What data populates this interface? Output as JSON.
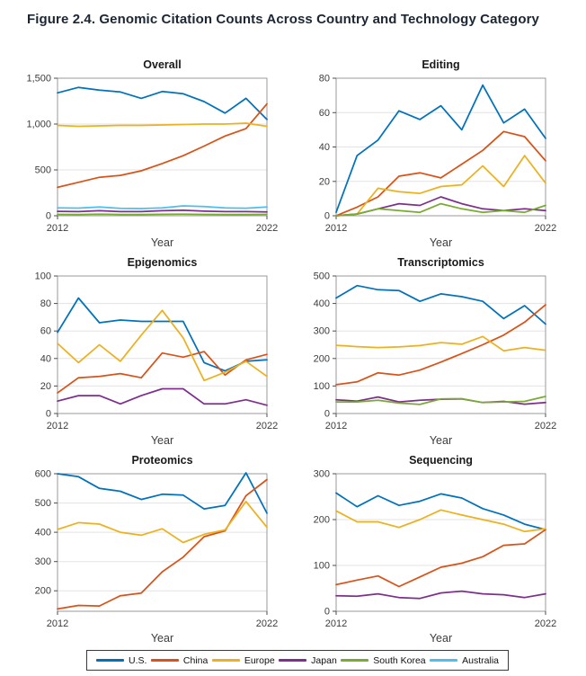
{
  "figure": {
    "title": "Figure 2.4. Genomic Citation Counts Across Country and Technology Category"
  },
  "legend": {
    "items": [
      {
        "label": "U.S.",
        "color": "#0072BD"
      },
      {
        "label": "China",
        "color": "#D95319"
      },
      {
        "label": "Europe",
        "color": "#EDB120"
      },
      {
        "label": "Japan",
        "color": "#7E2F8E"
      },
      {
        "label": "South Korea",
        "color": "#77AC30"
      },
      {
        "label": "Australia",
        "color": "#4DBEEE"
      }
    ]
  },
  "chart_data": [
    {
      "type": "line",
      "title": "Overall",
      "xlabel": "Year",
      "x": [
        2012,
        2013,
        2014,
        2015,
        2016,
        2017,
        2018,
        2019,
        2020,
        2021,
        2022
      ],
      "xticks": [
        "2012",
        "2022"
      ],
      "ylim": [
        0,
        1500
      ],
      "yticks": [
        0,
        500,
        1000,
        1500
      ],
      "ytick_labels": [
        "0",
        "500",
        "1,000",
        "1,500"
      ],
      "grid": true,
      "series": [
        {
          "name": "U.S.",
          "values": [
            1340,
            1400,
            1370,
            1350,
            1280,
            1355,
            1330,
            1245,
            1120,
            1280,
            1050
          ]
        },
        {
          "name": "China",
          "values": [
            310,
            365,
            420,
            440,
            490,
            570,
            655,
            760,
            870,
            950,
            1220
          ]
        },
        {
          "name": "Europe",
          "values": [
            985,
            975,
            980,
            985,
            985,
            990,
            995,
            1000,
            1000,
            1010,
            975
          ]
        },
        {
          "name": "Japan",
          "values": [
            48,
            45,
            55,
            45,
            45,
            55,
            60,
            50,
            45,
            45,
            42
          ]
        },
        {
          "name": "South Korea",
          "values": [
            15,
            14,
            18,
            14,
            14,
            16,
            18,
            15,
            14,
            14,
            15
          ]
        },
        {
          "name": "Australia",
          "values": [
            85,
            83,
            95,
            80,
            78,
            85,
            108,
            100,
            85,
            82,
            95
          ]
        }
      ]
    },
    {
      "type": "line",
      "title": "Editing",
      "xlabel": "Year",
      "x": [
        2012,
        2013,
        2014,
        2015,
        2016,
        2017,
        2018,
        2019,
        2020,
        2021,
        2022
      ],
      "xticks": [
        "2012",
        "2022"
      ],
      "ylim": [
        0,
        80
      ],
      "yticks": [
        0,
        20,
        40,
        60,
        80
      ],
      "ytick_labels": [
        "0",
        "20",
        "40",
        "60",
        "80"
      ],
      "grid": true,
      "series": [
        {
          "name": "U.S.",
          "values": [
            2,
            35,
            44,
            61,
            56,
            64,
            50,
            76,
            54,
            62,
            45
          ]
        },
        {
          "name": "China",
          "values": [
            0,
            5,
            11,
            23,
            25,
            22,
            30,
            38,
            49,
            46,
            32
          ]
        },
        {
          "name": "Europe",
          "values": [
            0,
            1,
            16,
            14,
            13,
            17,
            18,
            29,
            17,
            35,
            19
          ]
        },
        {
          "name": "Japan",
          "values": [
            0,
            1,
            4,
            7,
            6,
            11,
            7,
            4,
            3,
            4,
            3
          ]
        },
        {
          "name": "South Korea",
          "values": [
            0,
            1,
            4,
            3,
            2,
            7,
            4,
            2,
            3,
            2,
            6
          ]
        }
      ]
    },
    {
      "type": "line",
      "title": "Epigenomics",
      "xlabel": "Year",
      "x": [
        2012,
        2013,
        2014,
        2015,
        2016,
        2017,
        2018,
        2019,
        2020,
        2021,
        2022
      ],
      "xticks": [
        "2012",
        "2022"
      ],
      "ylim": [
        0,
        100
      ],
      "yticks": [
        0,
        20,
        40,
        60,
        80,
        100
      ],
      "ytick_labels": [
        "0",
        "20",
        "40",
        "60",
        "80",
        "100"
      ],
      "grid": true,
      "series": [
        {
          "name": "U.S.",
          "values": [
            59,
            84,
            66,
            68,
            67,
            67,
            67,
            37,
            31,
            38,
            39
          ]
        },
        {
          "name": "China",
          "values": [
            15,
            26,
            27,
            29,
            26,
            44,
            41,
            45,
            28,
            39,
            43
          ]
        },
        {
          "name": "Europe",
          "values": [
            51,
            37,
            50,
            38,
            57,
            75,
            55,
            24,
            30,
            38,
            27
          ]
        },
        {
          "name": "Japan",
          "values": [
            9,
            13,
            13,
            7,
            13,
            18,
            18,
            7,
            7,
            10,
            6
          ]
        }
      ]
    },
    {
      "type": "line",
      "title": "Transcriptomics",
      "xlabel": "Year",
      "x": [
        2012,
        2013,
        2014,
        2015,
        2016,
        2017,
        2018,
        2019,
        2020,
        2021,
        2022
      ],
      "xticks": [
        "2012",
        "2022"
      ],
      "ylim": [
        0,
        500
      ],
      "yticks": [
        0,
        100,
        200,
        300,
        400,
        500
      ],
      "ytick_labels": [
        "0",
        "100",
        "200",
        "300",
        "400",
        "500"
      ],
      "grid": true,
      "series": [
        {
          "name": "U.S.",
          "values": [
            420,
            465,
            450,
            447,
            408,
            435,
            425,
            408,
            345,
            392,
            325
          ]
        },
        {
          "name": "China",
          "values": [
            105,
            115,
            148,
            140,
            158,
            187,
            218,
            250,
            285,
            332,
            395
          ]
        },
        {
          "name": "Europe",
          "values": [
            248,
            243,
            240,
            242,
            247,
            258,
            252,
            280,
            228,
            240,
            230
          ]
        },
        {
          "name": "Japan",
          "values": [
            50,
            45,
            60,
            42,
            48,
            52,
            53,
            40,
            44,
            34,
            40
          ]
        },
        {
          "name": "South Korea",
          "values": [
            42,
            42,
            48,
            38,
            33,
            53,
            54,
            40,
            42,
            44,
            62
          ]
        }
      ]
    },
    {
      "type": "line",
      "title": "Proteomics",
      "xlabel": "Year",
      "x": [
        2012,
        2013,
        2014,
        2015,
        2016,
        2017,
        2018,
        2019,
        2020,
        2021,
        2022
      ],
      "xticks": [
        "2012",
        "2022"
      ],
      "ylim": [
        130,
        600
      ],
      "yticks": [
        200,
        300,
        400,
        500,
        600
      ],
      "ytick_labels": [
        "200",
        "300",
        "400",
        "500",
        "600"
      ],
      "grid": true,
      "series": [
        {
          "name": "U.S.",
          "values": [
            600,
            590,
            550,
            540,
            512,
            530,
            527,
            480,
            492,
            603,
            465
          ]
        },
        {
          "name": "China",
          "values": [
            138,
            150,
            148,
            183,
            192,
            265,
            315,
            385,
            405,
            525,
            580
          ]
        },
        {
          "name": "Europe",
          "values": [
            410,
            433,
            428,
            400,
            390,
            412,
            365,
            393,
            408,
            505,
            417
          ]
        }
      ]
    },
    {
      "type": "line",
      "title": "Sequencing",
      "xlabel": "Year",
      "x": [
        2012,
        2013,
        2014,
        2015,
        2016,
        2017,
        2018,
        2019,
        2020,
        2021,
        2022
      ],
      "xticks": [
        "2012",
        "2022"
      ],
      "ylim": [
        0,
        300
      ],
      "yticks": [
        0,
        100,
        200,
        300
      ],
      "ytick_labels": [
        "0",
        "100",
        "200",
        "300"
      ],
      "grid": true,
      "series": [
        {
          "name": "U.S.",
          "values": [
            258,
            228,
            252,
            231,
            240,
            256,
            247,
            224,
            210,
            190,
            178
          ]
        },
        {
          "name": "China",
          "values": [
            58,
            68,
            77,
            54,
            75,
            96,
            105,
            119,
            144,
            147,
            178
          ]
        },
        {
          "name": "Europe",
          "values": [
            219,
            195,
            195,
            183,
            200,
            221,
            210,
            200,
            190,
            174,
            180
          ]
        },
        {
          "name": "Japan",
          "values": [
            34,
            33,
            38,
            30,
            28,
            40,
            44,
            38,
            36,
            30,
            38
          ]
        }
      ]
    }
  ]
}
